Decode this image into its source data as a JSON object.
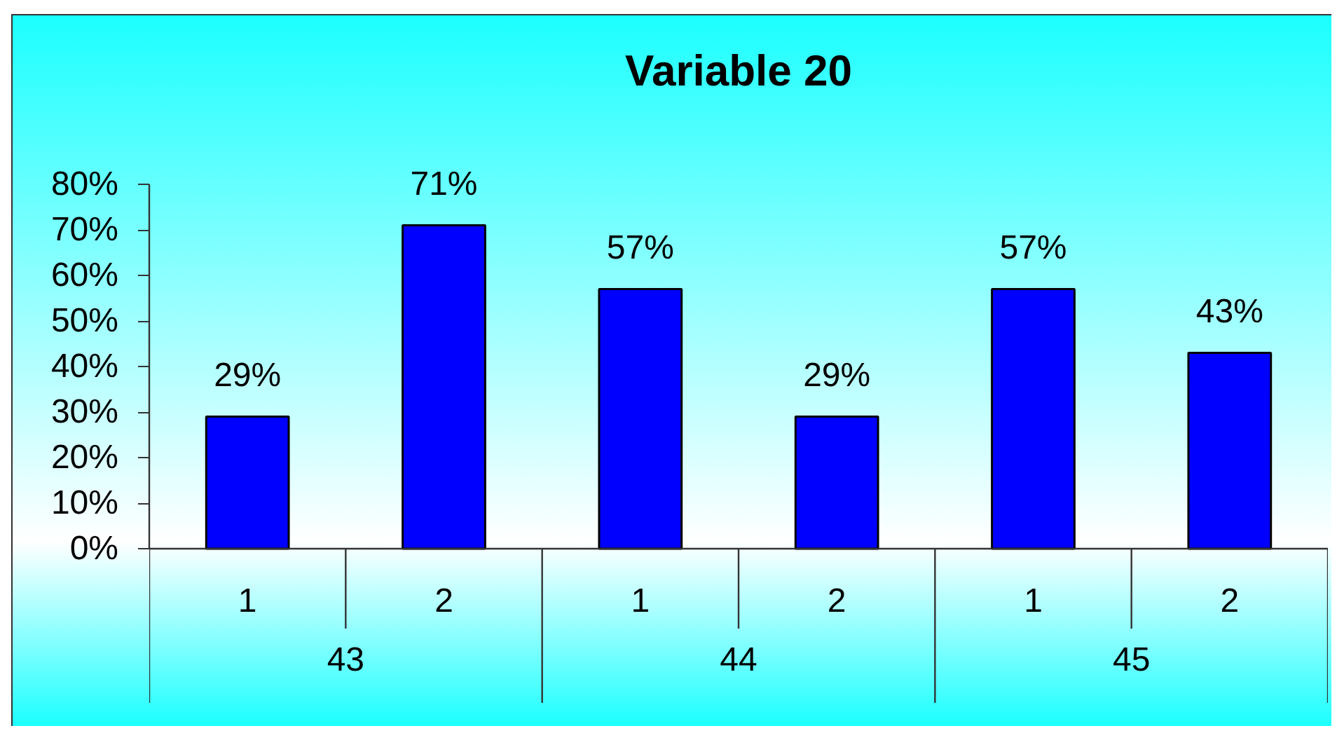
{
  "chart_data": {
    "type": "bar",
    "title": "Variable 20",
    "categories": [
      [
        "43",
        "1"
      ],
      [
        null,
        "2"
      ],
      [
        "44",
        "1"
      ],
      [
        null,
        "2"
      ],
      [
        "45",
        "1"
      ],
      [
        null,
        "2"
      ]
    ],
    "values": [
      29,
      71,
      57,
      29,
      57,
      43
    ],
    "value_labels": [
      "29%",
      "71%",
      "57%",
      "29%",
      "57%",
      "43%"
    ],
    "color": "#0000ff",
    "ylim": [
      0,
      80
    ],
    "yticks": [
      {
        "value": 0,
        "label": "0%"
      },
      {
        "value": 10,
        "label": "10%"
      },
      {
        "value": 20,
        "label": "20%"
      },
      {
        "value": 30,
        "label": "30%"
      },
      {
        "value": 40,
        "label": "40%"
      },
      {
        "value": 50,
        "label": "50%"
      },
      {
        "value": 60,
        "label": "60%"
      },
      {
        "value": 70,
        "label": "70%"
      },
      {
        "value": 80,
        "label": "80%"
      }
    ],
    "grid": false
  }
}
